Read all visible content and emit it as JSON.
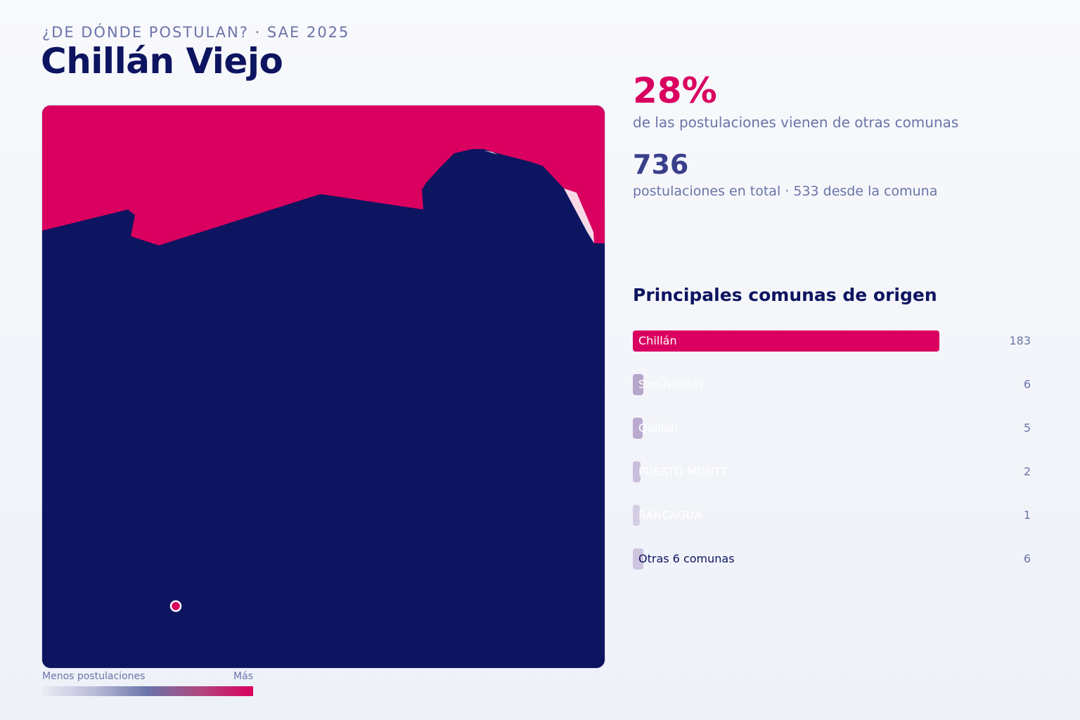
{
  "header": {
    "eyebrow": "¿DE DÓNDE POSTULAN? · SAE 2025",
    "title": "Chillán Viejo"
  },
  "stats": {
    "pct_other": "28%",
    "pct_other_label": "de las postulaciones vienen de otras comunas",
    "total": "736",
    "total_label": "postulaciones en total · 533 desde la comuna"
  },
  "origins": {
    "title": "Principales comunas de origen",
    "max_value": 183,
    "items": [
      {
        "name": "Chillán",
        "value": 183,
        "count": "183",
        "color": "#d9005f",
        "label_color": "#ffffff"
      },
      {
        "name": "San Nicolás",
        "value": 6,
        "count": "6",
        "color": "#b7a6cc",
        "label_color": "#ffffff"
      },
      {
        "name": "Quillón",
        "value": 5,
        "count": "5",
        "color": "#bba9cf",
        "label_color": "#ffffff"
      },
      {
        "name": "PUERTO MONTT",
        "value": 2,
        "count": "2",
        "color": "#c9bfdc",
        "label_color": "#ffffff"
      },
      {
        "name": "RANCAGUA",
        "value": 1,
        "count": "1",
        "color": "#d4cde4",
        "label_color": "#ffffff"
      },
      {
        "name": "Otras 6 comunas",
        "value": 6,
        "count": "6",
        "color": "#cdc4df",
        "label_color": "#0d1460"
      }
    ]
  },
  "legend": {
    "low": "Menos postulaciones",
    "high": "Más"
  },
  "colors": {
    "comuna_fill": "#0d1460",
    "neighbor_fill": "#d9005f",
    "accent": "#d9005f",
    "text_dark": "#0d1460",
    "text_muted": "#6a74a8"
  },
  "map": {
    "regions": [
      {
        "name": "Chillán Viejo",
        "role": "selected comuna"
      },
      {
        "name": "Chillán",
        "role": "top origin neighbor"
      }
    ],
    "marker": "school-location-marker"
  }
}
